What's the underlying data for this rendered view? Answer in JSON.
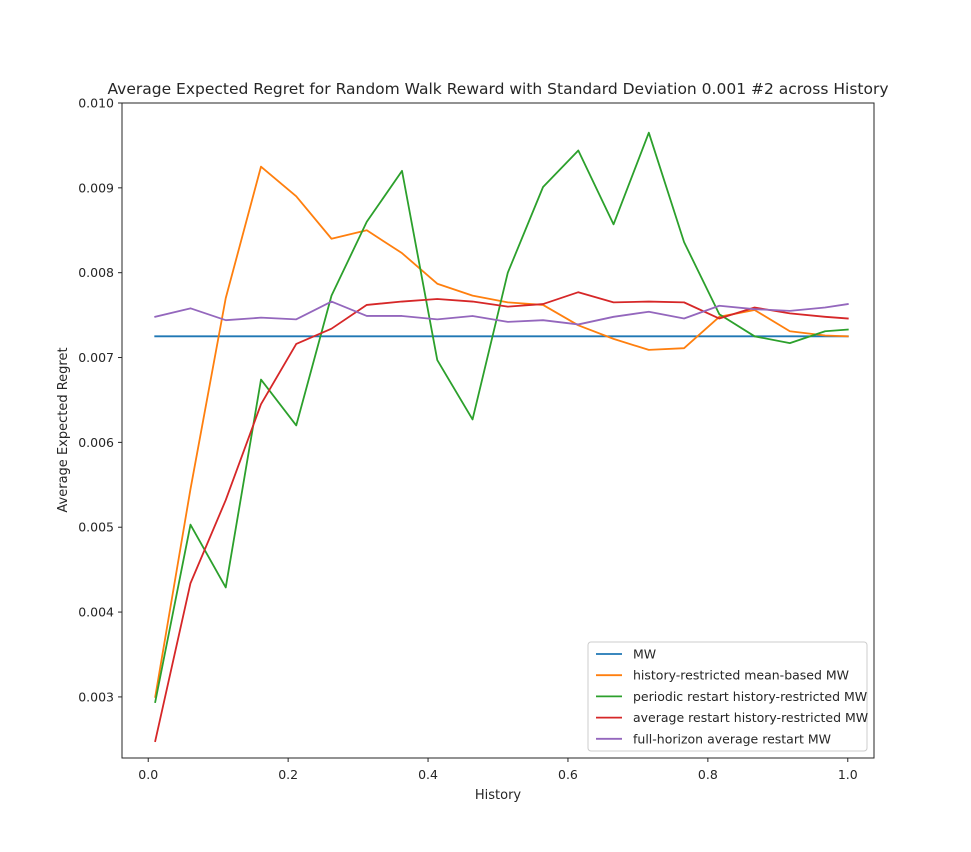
{
  "chart_data": {
    "type": "line",
    "title": "Average Expected Regret for Random Walk Reward with Standard Deviation 0.001 #2 across History",
    "xlabel": "History",
    "ylabel": "Average Expected Regret",
    "xlim": [
      -0.0375,
      1.0375
    ],
    "ylim": [
      0.00228,
      0.01
    ],
    "xticks": [
      {
        "value": 0.0,
        "label": "0.0"
      },
      {
        "value": 0.2,
        "label": "0.2"
      },
      {
        "value": 0.4,
        "label": "0.4"
      },
      {
        "value": 0.6,
        "label": "0.6"
      },
      {
        "value": 0.8,
        "label": "0.8"
      },
      {
        "value": 1.0,
        "label": "1.0"
      }
    ],
    "yticks": [
      {
        "value": 0.003,
        "label": "0.003"
      },
      {
        "value": 0.004,
        "label": "0.004"
      },
      {
        "value": 0.005,
        "label": "0.005"
      },
      {
        "value": 0.006,
        "label": "0.006"
      },
      {
        "value": 0.007,
        "label": "0.007"
      },
      {
        "value": 0.008,
        "label": "0.008"
      },
      {
        "value": 0.009,
        "label": "0.009"
      },
      {
        "value": 0.01,
        "label": "0.010"
      }
    ],
    "grid": false,
    "legend_position": "lower-right",
    "x": [
      0.01,
      0.0604,
      0.1108,
      0.1612,
      0.2116,
      0.262,
      0.3124,
      0.3628,
      0.4132,
      0.4636,
      0.514,
      0.5644,
      0.6148,
      0.6652,
      0.7156,
      0.766,
      0.8164,
      0.8668,
      0.9172,
      0.9676,
      1.0
    ],
    "series": [
      {
        "name": "MW",
        "color": "#1f77b4",
        "values": [
          0.00725,
          0.00725,
          0.00725,
          0.00725,
          0.00725,
          0.00725,
          0.00725,
          0.00725,
          0.00725,
          0.00725,
          0.00725,
          0.00725,
          0.00725,
          0.00725,
          0.00725,
          0.00725,
          0.00725,
          0.00725,
          0.00725,
          0.00725,
          0.00725
        ]
      },
      {
        "name": "history-restricted mean-based MW",
        "color": "#ff7f0e",
        "values": [
          0.003,
          0.00545,
          0.0077,
          0.00925,
          0.0089,
          0.0084,
          0.0085,
          0.00823,
          0.00787,
          0.00773,
          0.00765,
          0.00762,
          0.00738,
          0.00722,
          0.00709,
          0.00711,
          0.00748,
          0.00756,
          0.00731,
          0.00726,
          0.00725
        ]
      },
      {
        "name": "periodic restart history-restricted MW",
        "color": "#2ca02c",
        "values": [
          0.00294,
          0.00503,
          0.00429,
          0.00674,
          0.0062,
          0.00773,
          0.0086,
          0.0092,
          0.00697,
          0.00627,
          0.008,
          0.00901,
          0.00944,
          0.00857,
          0.00965,
          0.00836,
          0.00751,
          0.00725,
          0.00717,
          0.00731,
          0.00733
        ]
      },
      {
        "name": "average restart history-restricted MW",
        "color": "#d62728",
        "values": [
          0.00248,
          0.00434,
          0.00532,
          0.00645,
          0.00716,
          0.00734,
          0.00762,
          0.00766,
          0.00769,
          0.00766,
          0.0076,
          0.00763,
          0.00777,
          0.00765,
          0.00766,
          0.00765,
          0.00746,
          0.00759,
          0.00752,
          0.00748,
          0.00746
        ]
      },
      {
        "name": "full-horizon average restart MW",
        "color": "#9467bd",
        "values": [
          0.00748,
          0.00758,
          0.00744,
          0.00747,
          0.00745,
          0.00766,
          0.00749,
          0.00749,
          0.00745,
          0.00749,
          0.00742,
          0.00744,
          0.00739,
          0.00748,
          0.00754,
          0.00746,
          0.00761,
          0.00757,
          0.00755,
          0.00759,
          0.00763
        ]
      }
    ]
  }
}
